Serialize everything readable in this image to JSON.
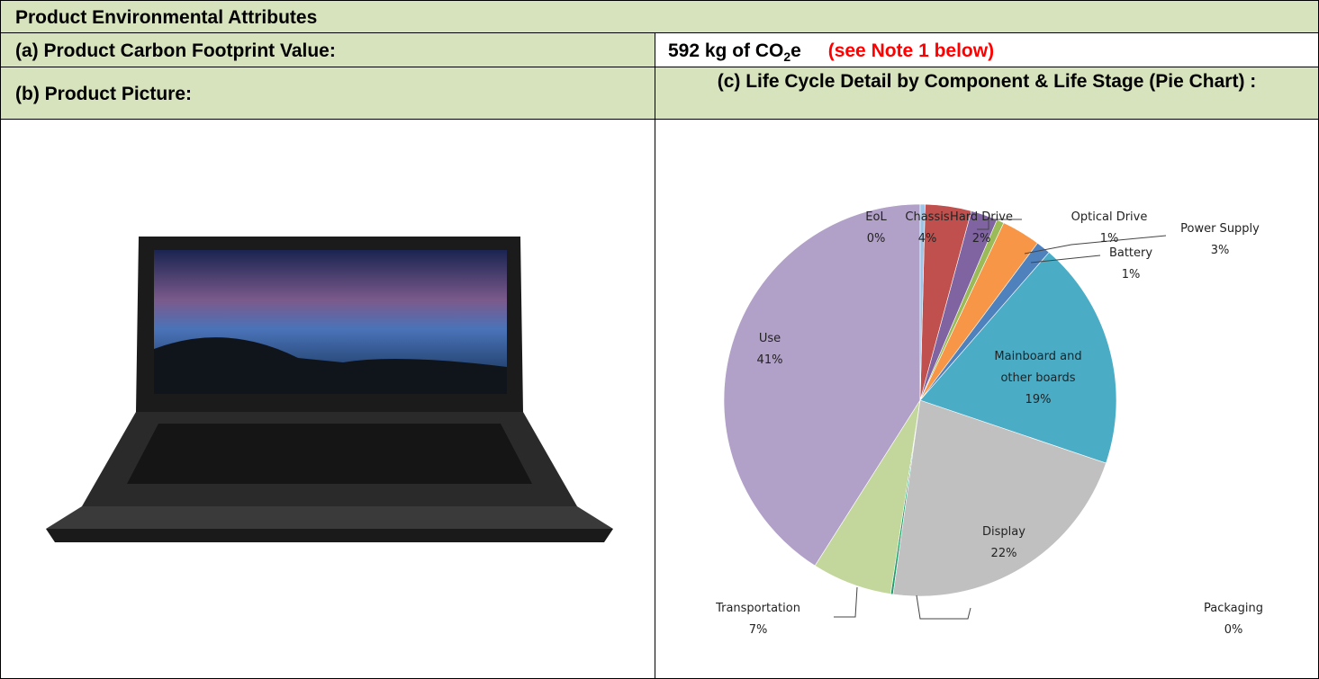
{
  "header": {
    "title": "Product Environmental Attributes"
  },
  "rows": [
    {
      "label": "(a) Product Carbon Footprint Value:",
      "value": {
        "text": "592 kg of CO",
        "subscript": "2",
        "suffix": "e",
        "note": "(see Note 1 below)"
      }
    },
    {
      "label": "(b) Product Picture:",
      "right_label": "(c) Life Cycle Detail by Component & Life Stage (Pie Chart) :"
    }
  ],
  "chart_data": {
    "type": "pie",
    "categories": [
      "EoL",
      "Chassis",
      "Hard Drive",
      "Optical Drive",
      "Power Supply",
      "Battery",
      "Mainboard and other boards",
      "Display",
      "Packaging",
      "Transportation",
      "Use"
    ],
    "values": [
      0.4,
      3.8,
      2.2,
      0.6,
      3.2,
      1.2,
      18.8,
      22,
      0.2,
      6.6,
      41
    ],
    "value_labels": [
      "0%",
      "4%",
      "2%",
      "1%",
      "3%",
      "1%",
      "19%",
      "22%",
      "0%",
      "7%",
      "41%"
    ],
    "colors": [
      "#9dc3e6",
      "#c0504d",
      "#8064a2",
      "#9bbb59",
      "#f79646",
      "#4f81bd",
      "#4bacc6",
      "#c0c0c0",
      "#1f9e6e",
      "#c3d69b",
      "#b1a0c7"
    ]
  }
}
